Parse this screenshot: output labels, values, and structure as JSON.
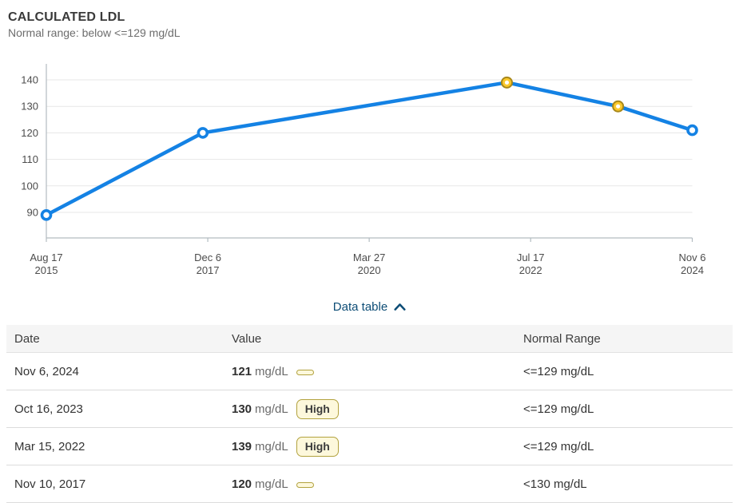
{
  "header": {
    "title": "CALCULATED LDL",
    "subtitle": "Normal range: below <=129 mg/dL"
  },
  "chart_data": {
    "type": "line",
    "title": "CALCULATED LDL",
    "ylabel": "mg/dL",
    "xlabel": "",
    "grid": true,
    "legend": false,
    "ylim": [
      80,
      146
    ],
    "y_ticks": [
      90,
      100,
      110,
      120,
      130,
      140
    ],
    "x_ticks": [
      {
        "line1": "Aug 17",
        "line2": "2015",
        "date": "Aug 17, 2015"
      },
      {
        "line1": "Dec 6",
        "line2": "2017",
        "date": "Dec 6, 2017"
      },
      {
        "line1": "Mar 27",
        "line2": "2020",
        "date": "Mar 27, 2020"
      },
      {
        "line1": "Jul 17",
        "line2": "2022",
        "date": "Jul 17, 2022"
      },
      {
        "line1": "Nov 6",
        "line2": "2024",
        "date": "Nov 6, 2024"
      }
    ],
    "series": [
      {
        "name": "Calculated LDL",
        "points": [
          {
            "date": "Aug 17, 2015",
            "value": 89,
            "flag": "normal"
          },
          {
            "date": "Nov 10, 2017",
            "value": 120,
            "flag": "normal"
          },
          {
            "date": "Mar 15, 2022",
            "value": 139,
            "flag": "high"
          },
          {
            "date": "Oct 16, 2023",
            "value": 130,
            "flag": "high"
          },
          {
            "date": "Nov 6, 2024",
            "value": 121,
            "flag": "normal"
          }
        ]
      }
    ],
    "colors": {
      "line": "#1482e4",
      "high_fill": "#fbc92c",
      "high_border": "#a8881a",
      "link": "#0d4d76"
    }
  },
  "data_table": {
    "toggle_label": "Data table",
    "columns": [
      "Date",
      "Value",
      "Normal Range"
    ],
    "rows": [
      {
        "date": "Nov 6, 2024",
        "value": "121",
        "unit": "mg/dL",
        "flag": "",
        "range": "<=129 mg/dL"
      },
      {
        "date": "Oct 16, 2023",
        "value": "130",
        "unit": "mg/dL",
        "flag": "High",
        "range": "<=129 mg/dL"
      },
      {
        "date": "Mar 15, 2022",
        "value": "139",
        "unit": "mg/dL",
        "flag": "High",
        "range": "<=129 mg/dL"
      },
      {
        "date": "Nov 10, 2017",
        "value": "120",
        "unit": "mg/dL",
        "flag": "",
        "range": "<130 mg/dL"
      }
    ]
  }
}
